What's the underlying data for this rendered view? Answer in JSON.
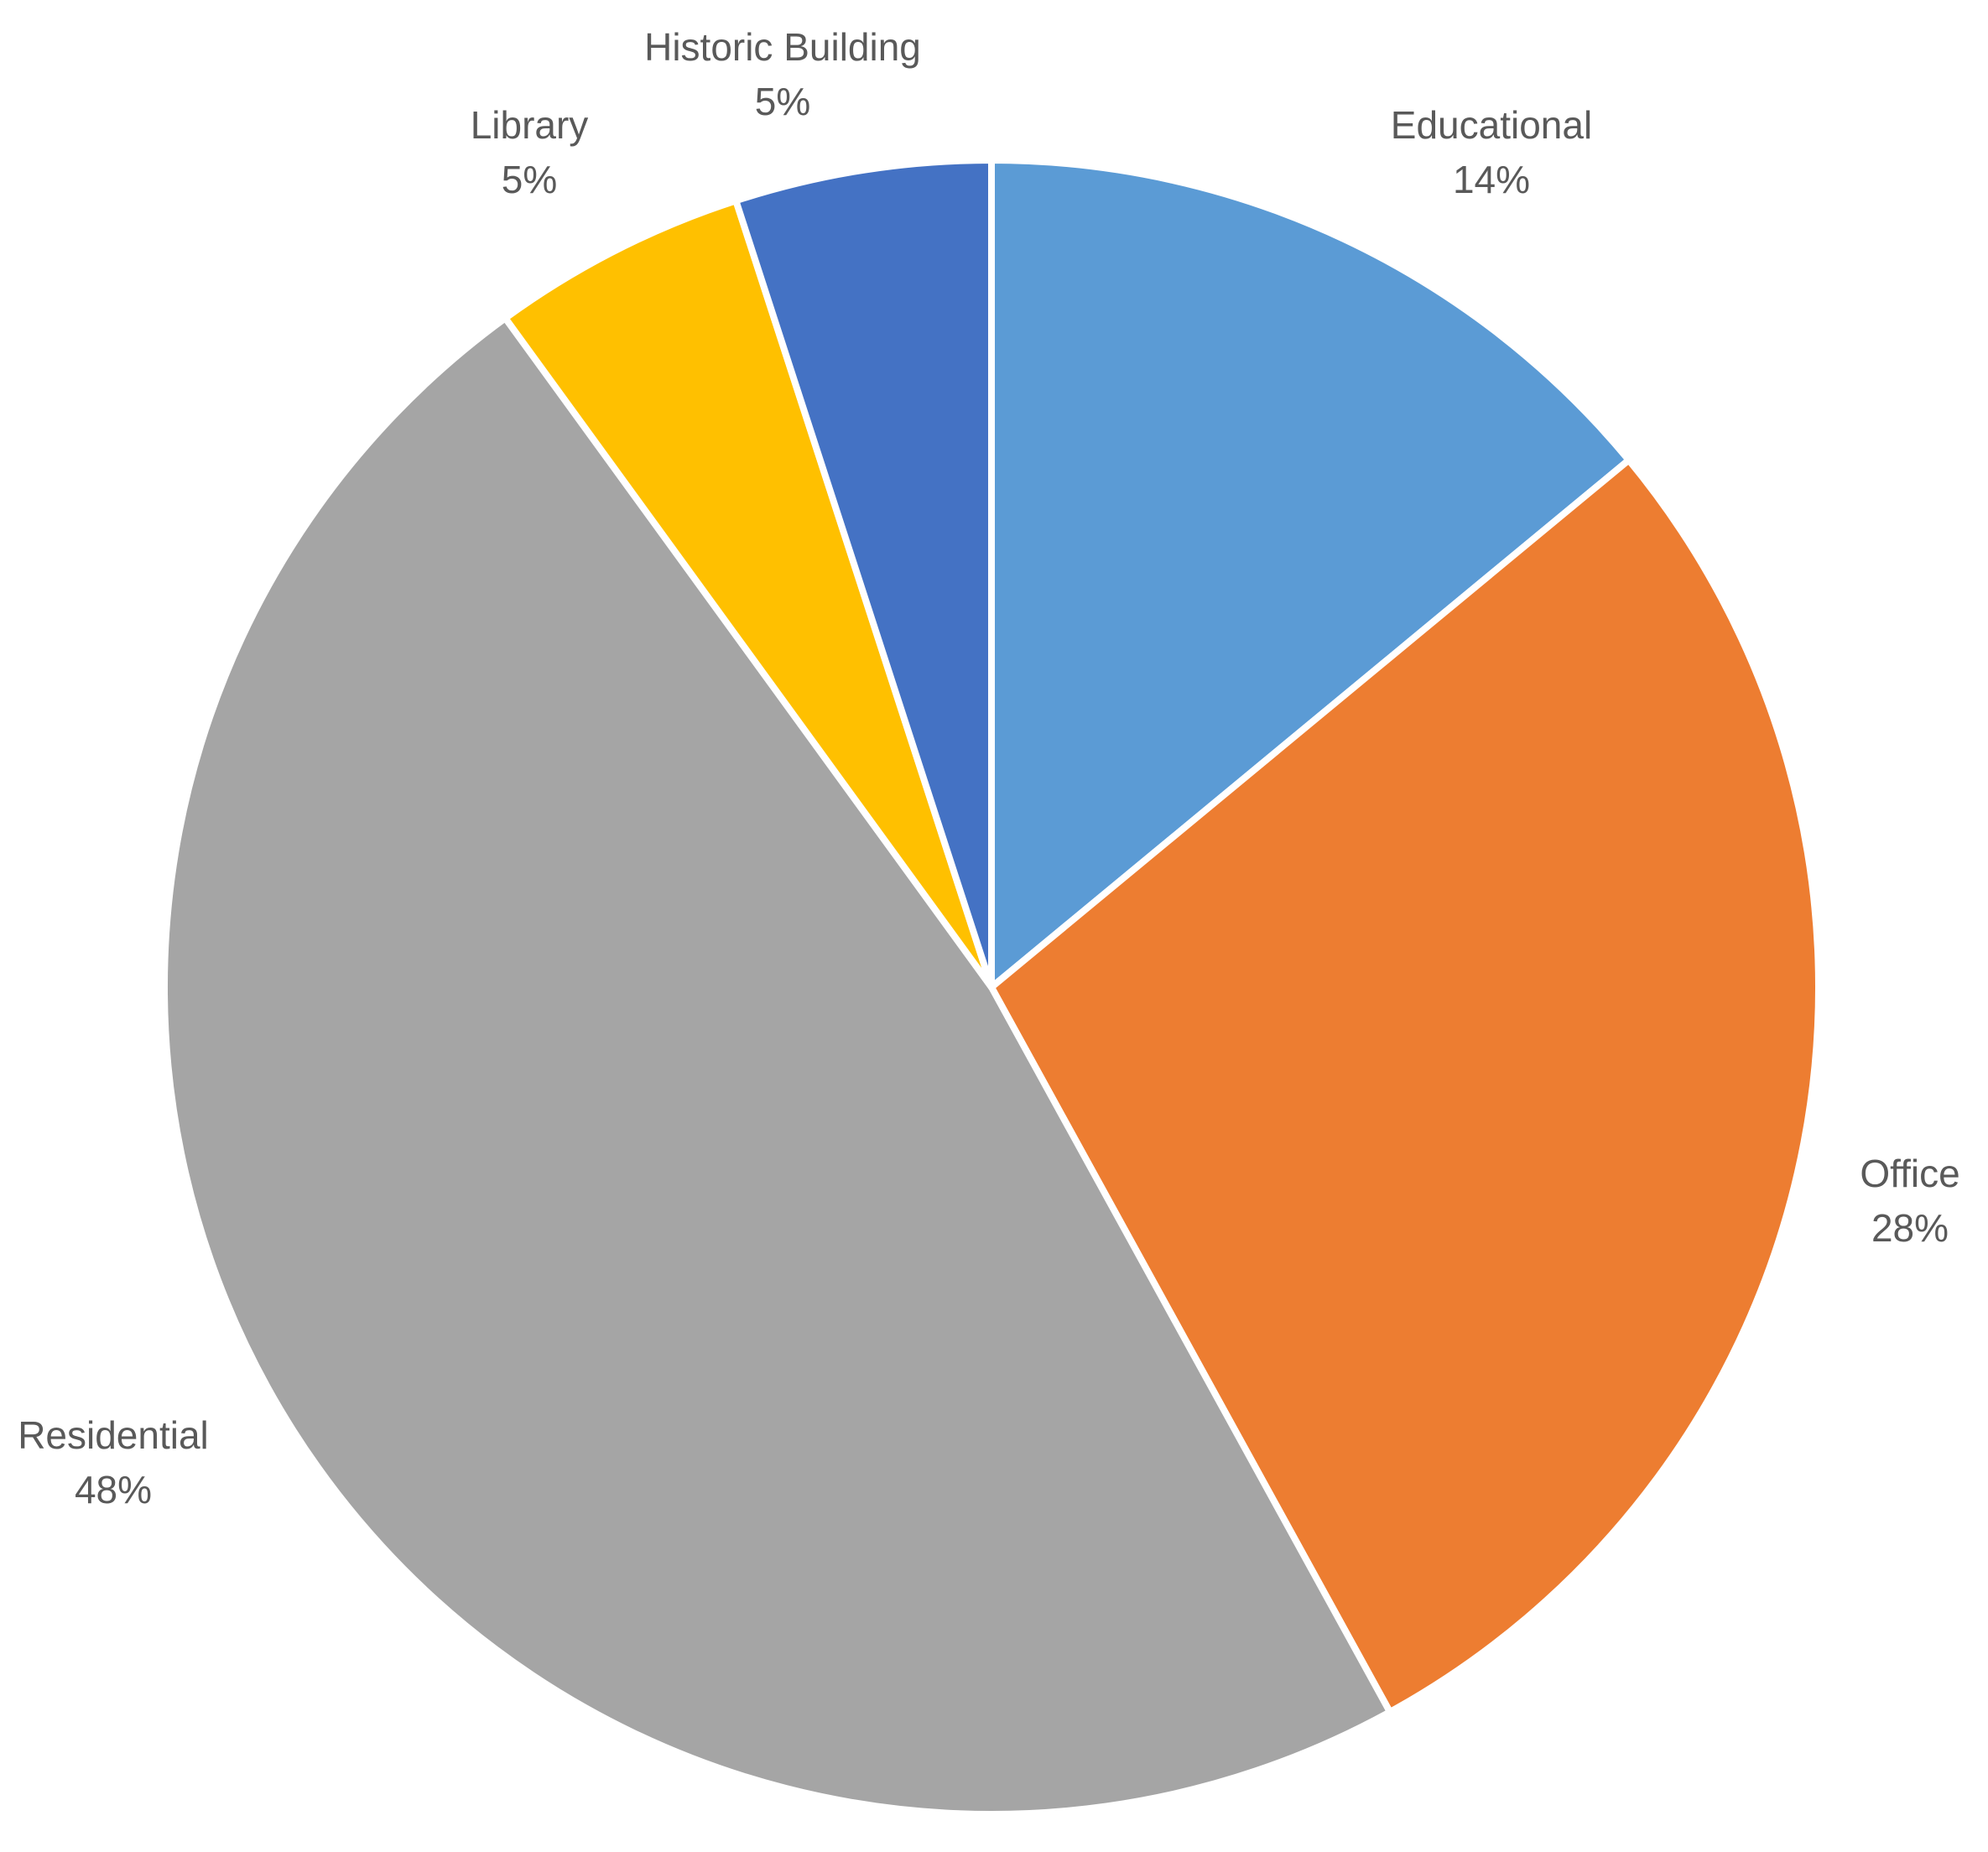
{
  "chart_data": {
    "type": "pie",
    "title": "",
    "categories": [
      "Educational",
      "Office",
      "Residential",
      "Library",
      "Historic Building"
    ],
    "values": [
      14,
      28,
      48,
      5,
      5
    ],
    "labels": [
      "14%",
      "28%",
      "48%",
      "5%",
      "5%"
    ],
    "colors": [
      "#5B9BD5",
      "#ED7D31",
      "#A5A5A5",
      "#FFC000",
      "#4472C4"
    ],
    "start_angle_deg": 0,
    "direction": "clockwise",
    "legend": "none"
  }
}
